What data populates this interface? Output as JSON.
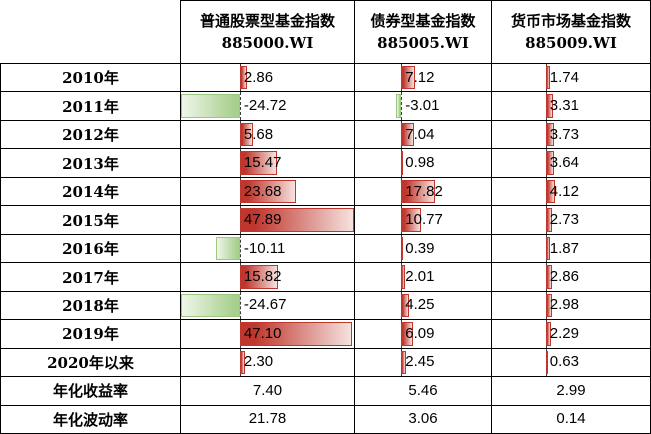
{
  "table": {
    "columns": [
      {
        "name": "普通股票型基金指数",
        "code": "885000.WI"
      },
      {
        "name": "债券型基金指数",
        "code": "885005.WI"
      },
      {
        "name": "货币市场基金指数",
        "code": "885009.WI"
      }
    ],
    "rows": [
      {
        "label": "2010年",
        "display": [
          "2.86",
          "7.12",
          "1.74"
        ],
        "has_bars": true
      },
      {
        "label": "2011年",
        "display": [
          "-24.72",
          "-3.01",
          "3.31"
        ],
        "has_bars": true
      },
      {
        "label": "2012年",
        "display": [
          "5.68",
          "7.04",
          "3.73"
        ],
        "has_bars": true
      },
      {
        "label": "2013年",
        "display": [
          "15.47",
          "0.98",
          "3.64"
        ],
        "has_bars": true
      },
      {
        "label": "2014年",
        "display": [
          "23.68",
          "17.82",
          "4.12"
        ],
        "has_bars": true
      },
      {
        "label": "2015年",
        "display": [
          "47.89",
          "10.77",
          "2.73"
        ],
        "has_bars": true
      },
      {
        "label": "2016年",
        "display": [
          "-10.11",
          "0.39",
          "1.87"
        ],
        "has_bars": true
      },
      {
        "label": "2017年",
        "display": [
          "15.82",
          "2.01",
          "2.86"
        ],
        "has_bars": true
      },
      {
        "label": "2018年",
        "display": [
          "-24.67",
          "4.25",
          "2.98"
        ],
        "has_bars": true
      },
      {
        "label": "2019年",
        "display": [
          "47.10",
          "6.09",
          "2.29"
        ],
        "has_bars": true
      },
      {
        "label": "2020年以来",
        "display": [
          "2.30",
          "2.45",
          "0.63"
        ],
        "has_bars": true
      },
      {
        "label": "年化收益率",
        "display": [
          "7.40",
          "5.46",
          "2.99"
        ],
        "has_bars": false
      },
      {
        "label": "年化波动率",
        "display": [
          "21.78",
          "3.06",
          "0.14"
        ],
        "has_bars": false
      }
    ],
    "databar": {
      "min": -24.72,
      "max": 47.89,
      "positive_color": "#bf362d",
      "positive_fade": "#f5e2df",
      "negative_color": "#a7cf8d",
      "negative_fade": "#eff6e9",
      "axis_color": "#3c3c3c"
    }
  },
  "chart_data": {
    "type": "table",
    "row_labels": [
      "2010年",
      "2011年",
      "2012年",
      "2013年",
      "2014年",
      "2015年",
      "2016年",
      "2017年",
      "2018年",
      "2019年",
      "2020年以来",
      "年化收益率",
      "年化波动率"
    ],
    "series": [
      {
        "name": "普通股票型基金指数 885000.WI",
        "values": [
          2.86,
          -24.72,
          5.68,
          15.47,
          23.68,
          47.89,
          -10.11,
          15.82,
          -24.67,
          47.1,
          2.3,
          7.4,
          21.78
        ]
      },
      {
        "name": "债券型基金指数 885005.WI",
        "values": [
          7.12,
          -3.01,
          7.04,
          0.98,
          17.82,
          10.77,
          0.39,
          2.01,
          4.25,
          6.09,
          2.45,
          5.46,
          3.06
        ]
      },
      {
        "name": "货币市场基金指数 885009.WI",
        "values": [
          1.74,
          3.31,
          3.73,
          3.64,
          4.12,
          2.73,
          1.87,
          2.86,
          2.98,
          2.29,
          0.63,
          2.99,
          0.14
        ]
      }
    ],
    "databar_scale": {
      "min": -24.72,
      "max": 47.89,
      "axis_fraction": 0.3404
    },
    "notes_layout": "gradient data bars on year rows only; last two rows plain centered values"
  }
}
